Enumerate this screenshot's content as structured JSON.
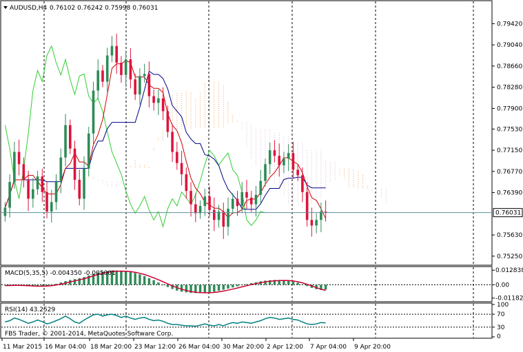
{
  "header": {
    "symbol_timeframe": "AUDUSD,H4",
    "ohlc": "0.76102 0.76242 0.75998 0.76031"
  },
  "footer": {
    "copyright": "FBS Trader, © 2001-2014, MetaQuotes Software Corp."
  },
  "colors": {
    "bull": "#2e8b57",
    "bear": "#dc143c",
    "kijun": "#00008b",
    "tenkan": "#cc0000",
    "chikou": "#32cd32",
    "cloud_up": "#f4a460",
    "cloud_down": "#d8bfd8",
    "macd_hist": "#2e8b57",
    "macd_signal": "#cc0033",
    "rsi": "#008080",
    "grid": "#000000",
    "bid_line": "#5f8f9f"
  },
  "chart_data": [
    {
      "type": "candlestick",
      "title": "AUDUSD,H4",
      "ylim": [
        0.751,
        0.7982
      ],
      "y_ticks": [
        "0.79420",
        "0.79040",
        "0.78660",
        "0.78280",
        "0.77900",
        "0.77530",
        "0.77150",
        "0.76770",
        "0.76390",
        "0.76031",
        "0.75630",
        "0.75250"
      ],
      "x_ticks": [
        "11 Mar 2015",
        "16 Mar 04:00",
        "18 Mar 20:00",
        "23 Mar 12:00",
        "26 Mar 04:00",
        "30 Mar 20:00",
        "2 Apr 12:00",
        "7 Apr 04:00",
        "9 Apr 20:00"
      ],
      "current_price": "0.76031",
      "close_series": [
        0.7612,
        0.7658,
        0.7712,
        0.769,
        0.7662,
        0.7628,
        0.7645,
        0.7668,
        0.764,
        0.7605,
        0.7622,
        0.766,
        0.7702,
        0.776,
        0.7718,
        0.7662,
        0.7628,
        0.7682,
        0.7745,
        0.7822,
        0.7858,
        0.7838,
        0.7885,
        0.7902,
        0.7872,
        0.785,
        0.7878,
        0.7842,
        0.7815,
        0.7848,
        0.7852,
        0.7812,
        0.78,
        0.7808,
        0.7785,
        0.7748,
        0.7712,
        0.7692,
        0.7672,
        0.7642,
        0.7618,
        0.7602,
        0.7615,
        0.7632,
        0.7608,
        0.759,
        0.7605,
        0.7578,
        0.761,
        0.7628,
        0.7615,
        0.764,
        0.763,
        0.7618,
        0.7635,
        0.766,
        0.769,
        0.7715,
        0.7705,
        0.7688,
        0.77,
        0.771,
        0.768,
        0.767,
        0.764,
        0.759,
        0.758,
        0.759,
        0.7605,
        0.7603
      ],
      "indicators": [
        "Tenkan-sen",
        "Kijun-sen",
        "Chikou Span",
        "Senkou Span A",
        "Senkou Span B"
      ]
    },
    {
      "type": "bar",
      "title": "MACD(5,35,5) -0.004350 -0.005001",
      "ylim": [
        -0.0138,
        0.0148
      ],
      "y_ticks": [
        "0.012838",
        "0.00",
        "-0.011822"
      ],
      "hist_series": [
        -0.0006,
        -0.0004,
        0.0,
        -0.0004,
        -0.0008,
        -0.0012,
        -0.0015,
        -0.0016,
        -0.0014,
        -0.001,
        -0.0004,
        0.0008,
        0.002,
        0.0032,
        0.0042,
        0.005,
        0.0058,
        0.0068,
        0.0082,
        0.0096,
        0.0108,
        0.0116,
        0.0121,
        0.0125,
        0.0126,
        0.0124,
        0.012,
        0.0114,
        0.0104,
        0.0092,
        0.0076,
        0.0058,
        0.004,
        0.002,
        0.0,
        -0.002,
        -0.0038,
        -0.0052,
        -0.0062,
        -0.0068,
        -0.0072,
        -0.0074,
        -0.0074,
        -0.0072,
        -0.0068,
        -0.0062,
        -0.0054,
        -0.0044,
        -0.0034,
        -0.0024,
        -0.0014,
        -0.0004,
        0.0006,
        0.0014,
        0.0022,
        0.003,
        0.0036,
        0.004,
        0.0042,
        0.0042,
        0.004,
        0.0036,
        0.0028,
        0.0018,
        0.0004,
        -0.0012,
        -0.0028,
        -0.004,
        -0.0046,
        -0.0044
      ],
      "signal_series": [
        -0.0008,
        -0.0007,
        -0.0006,
        -0.0006,
        -0.0007,
        -0.0009,
        -0.0011,
        -0.0013,
        -0.0013,
        -0.0012,
        -0.0009,
        -0.0003,
        0.0005,
        0.0014,
        0.0024,
        0.0034,
        0.0043,
        0.0053,
        0.0065,
        0.0078,
        0.009,
        0.0101,
        0.0109,
        0.0115,
        0.0119,
        0.012,
        0.0119,
        0.0116,
        0.011,
        0.0101,
        0.009,
        0.0076,
        0.0061,
        0.0044,
        0.0026,
        0.0008,
        -0.001,
        -0.0026,
        -0.004,
        -0.0051,
        -0.006,
        -0.0066,
        -0.007,
        -0.0071,
        -0.0071,
        -0.0068,
        -0.0063,
        -0.0056,
        -0.0048,
        -0.0039,
        -0.0029,
        -0.0019,
        -0.0009,
        0.0001,
        0.001,
        0.0018,
        0.0025,
        0.0031,
        0.0035,
        0.0037,
        0.0038,
        0.0037,
        0.0033,
        0.0026,
        0.0017,
        0.0004,
        -0.001,
        -0.0025,
        -0.004,
        -0.005
      ]
    },
    {
      "type": "line",
      "title": "RSI(14) 43.2529",
      "ylim": [
        0,
        100
      ],
      "y_ticks": [
        "100",
        "70",
        "30",
        "0"
      ],
      "levels": [
        70,
        30
      ],
      "series": [
        {
          "values": [
            46,
            50,
            58,
            54,
            48,
            42,
            46,
            52,
            47,
            40,
            44,
            50,
            56,
            64,
            56,
            46,
            42,
            52,
            60,
            68,
            70,
            64,
            68,
            70,
            66,
            60,
            64,
            58,
            54,
            58,
            60,
            54,
            50,
            52,
            48,
            42,
            38,
            38,
            36,
            34,
            34,
            33,
            36,
            40,
            36,
            34,
            38,
            34,
            40,
            44,
            42,
            46,
            44,
            42,
            46,
            50,
            56,
            60,
            58,
            54,
            56,
            58,
            54,
            52,
            46,
            40,
            38,
            40,
            44,
            43
          ]
        }
      ]
    }
  ]
}
